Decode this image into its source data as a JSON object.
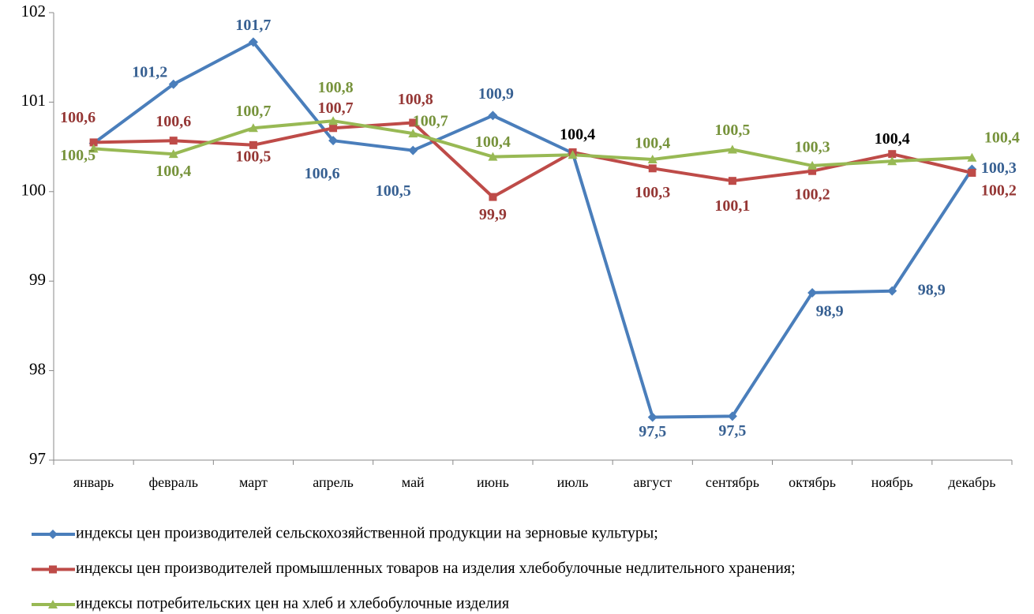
{
  "chart_data": {
    "type": "line",
    "categories": [
      "январь",
      "февраль",
      "март",
      "апрель",
      "май",
      "июнь",
      "июль",
      "август",
      "сентябрь",
      "октябрь",
      "ноябрь",
      "декабрь"
    ],
    "ylim": [
      97,
      102
    ],
    "yticks": [
      97,
      98,
      99,
      100,
      101,
      102
    ],
    "grid": false,
    "series": [
      {
        "name": "индексы цен производителей сельскохозяйственной продукции на зерновые культуры;",
        "color": "#4a7ebb",
        "label_color": "#376092",
        "marker": "diamond",
        "values": [
          100.54,
          101.2,
          101.67,
          100.57,
          100.46,
          100.85,
          100.43,
          97.48,
          97.49,
          98.87,
          98.89,
          100.25
        ],
        "value_labels": [
          null,
          "101,2",
          "101,7",
          "100,6",
          "100,5",
          "100,9",
          "100,4",
          "97,5",
          "97,5",
          "98,9",
          "98,9",
          "100,3"
        ],
        "value_label_colors": [
          null,
          null,
          null,
          null,
          null,
          null,
          "#000000",
          null,
          null,
          null,
          null,
          null
        ]
      },
      {
        "name": "индексы цен производителей промышленных товаров на изделия хлебобулочные недлительного хранения;",
        "color": "#be4b48",
        "label_color": "#953735",
        "marker": "square",
        "values": [
          100.55,
          100.57,
          100.52,
          100.71,
          100.77,
          99.94,
          100.44,
          100.26,
          100.12,
          100.23,
          100.42,
          100.21
        ],
        "value_labels": [
          "100,6",
          "100,6",
          "100,5",
          "100,7",
          "100,8",
          "99,9",
          null,
          "100,3",
          "100,1",
          "100,2",
          "100,4",
          "100,2"
        ],
        "value_label_colors": [
          null,
          null,
          null,
          null,
          null,
          null,
          null,
          null,
          null,
          null,
          "#000000",
          null
        ]
      },
      {
        "name": "индексы потребительских цен на хлеб и хлебобулочные изделия",
        "color": "#98b954",
        "label_color": "#77933c",
        "marker": "triangle",
        "values": [
          100.48,
          100.42,
          100.71,
          100.79,
          100.65,
          100.39,
          100.41,
          100.36,
          100.47,
          100.29,
          100.34,
          100.38
        ],
        "value_labels": [
          "100,5",
          "100,4",
          "100,7",
          "100,8",
          "100,7",
          "100,4",
          null,
          "100,4",
          "100,5",
          "100,3",
          null,
          "100,4"
        ],
        "value_label_colors": [
          null,
          null,
          null,
          null,
          null,
          null,
          null,
          null,
          null,
          null,
          null,
          null
        ]
      }
    ]
  }
}
